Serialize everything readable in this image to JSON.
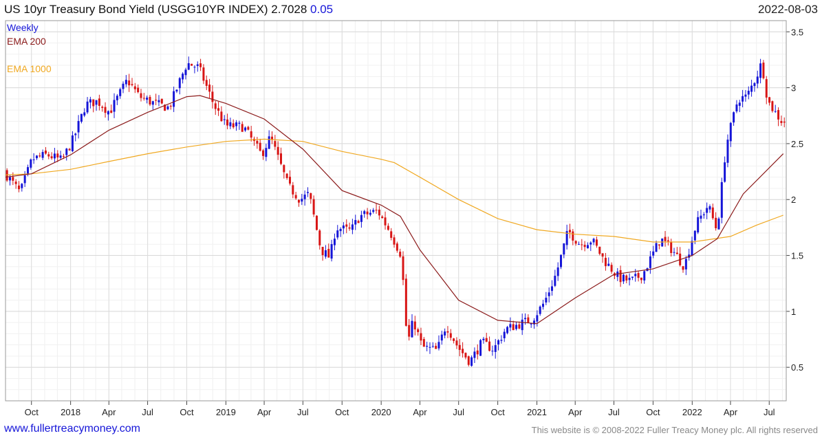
{
  "header": {
    "title_main": "US 10yr Treasury Bond Yield (USGG10YR INDEX) 2.7028",
    "title_change": "0.05",
    "date": "2022-08-03"
  },
  "legend": {
    "frequency": "Weekly",
    "ema200": "EMA 200",
    "ema1000": "EMA 1000"
  },
  "footer": {
    "site": "www.fullertreacymoney.com",
    "copyright": "This website is © 2008-2022 Fuller Treacy Money plc. All rights reserved"
  },
  "colors": {
    "up": "#1515d8",
    "down": "#d81515",
    "ema200": "#8b1a1a",
    "ema1000": "#f0a820",
    "grid": "#e6e6e6"
  },
  "chart_data": {
    "type": "candlestick",
    "x_range": [
      "2017-08-01",
      "2022-08-10"
    ],
    "ylim": [
      0.2,
      3.6
    ],
    "y_ticks": [
      0.5,
      1,
      1.5,
      2,
      2.5,
      3,
      3.5
    ],
    "y_tick_labels": [
      "0.5",
      "1",
      "1.5",
      "2",
      "2.5",
      "3",
      "3.5"
    ],
    "x_ticks": [
      {
        "date": "2017-10-01",
        "label": "Oct"
      },
      {
        "date": "2018-01-01",
        "label": "2018"
      },
      {
        "date": "2018-04-01",
        "label": "Apr"
      },
      {
        "date": "2018-07-01",
        "label": "Jul"
      },
      {
        "date": "2018-10-01",
        "label": "Oct"
      },
      {
        "date": "2019-01-01",
        "label": "2019"
      },
      {
        "date": "2019-04-01",
        "label": "Apr"
      },
      {
        "date": "2019-07-01",
        "label": "Jul"
      },
      {
        "date": "2019-10-01",
        "label": "Oct"
      },
      {
        "date": "2020-01-01",
        "label": "2020"
      },
      {
        "date": "2020-04-01",
        "label": "Apr"
      },
      {
        "date": "2020-07-01",
        "label": "Jul"
      },
      {
        "date": "2020-10-01",
        "label": "Oct"
      },
      {
        "date": "2021-01-01",
        "label": "2021"
      },
      {
        "date": "2021-04-01",
        "label": "Apr"
      },
      {
        "date": "2021-07-01",
        "label": "Jul"
      },
      {
        "date": "2021-10-01",
        "label": "Oct"
      },
      {
        "date": "2022-01-01",
        "label": "2022"
      },
      {
        "date": "2022-04-01",
        "label": "Apr"
      },
      {
        "date": "2022-07-01",
        "label": "Jul"
      }
    ],
    "price_path": [
      [
        "2017-08-01",
        2.25
      ],
      [
        "2017-09-08",
        2.06
      ],
      [
        "2017-10-06",
        2.36
      ],
      [
        "2017-11-10",
        2.4
      ],
      [
        "2017-12-15",
        2.35
      ],
      [
        "2018-01-12",
        2.55
      ],
      [
        "2018-02-09",
        2.85
      ],
      [
        "2018-03-09",
        2.88
      ],
      [
        "2018-04-06",
        2.78
      ],
      [
        "2018-05-18",
        3.07
      ],
      [
        "2018-06-15",
        2.92
      ],
      [
        "2018-07-20",
        2.86
      ],
      [
        "2018-08-24",
        2.82
      ],
      [
        "2018-10-05",
        3.22
      ],
      [
        "2018-11-02",
        3.18
      ],
      [
        "2018-12-07",
        2.85
      ],
      [
        "2019-01-04",
        2.66
      ],
      [
        "2019-02-15",
        2.65
      ],
      [
        "2019-03-29",
        2.4
      ],
      [
        "2019-04-19",
        2.56
      ],
      [
        "2019-05-31",
        2.12
      ],
      [
        "2019-06-28",
        2.0
      ],
      [
        "2019-07-19",
        2.05
      ],
      [
        "2019-08-16",
        1.55
      ],
      [
        "2019-09-06",
        1.48
      ],
      [
        "2019-09-20",
        1.75
      ],
      [
        "2019-10-25",
        1.72
      ],
      [
        "2019-11-15",
        1.85
      ],
      [
        "2019-12-27",
        1.9
      ],
      [
        "2020-01-24",
        1.72
      ],
      [
        "2020-02-21",
        1.5
      ],
      [
        "2020-03-06",
        0.7
      ],
      [
        "2020-03-20",
        0.92
      ],
      [
        "2020-04-10",
        0.68
      ],
      [
        "2020-05-15",
        0.65
      ],
      [
        "2020-06-05",
        0.88
      ],
      [
        "2020-07-03",
        0.68
      ],
      [
        "2020-07-31",
        0.55
      ],
      [
        "2020-08-28",
        0.72
      ],
      [
        "2020-09-25",
        0.66
      ],
      [
        "2020-10-23",
        0.84
      ],
      [
        "2020-11-20",
        0.88
      ],
      [
        "2020-12-25",
        0.93
      ],
      [
        "2021-01-22",
        1.08
      ],
      [
        "2021-02-19",
        1.34
      ],
      [
        "2021-03-19",
        1.72
      ],
      [
        "2021-04-16",
        1.6
      ],
      [
        "2021-05-14",
        1.64
      ],
      [
        "2021-06-11",
        1.46
      ],
      [
        "2021-07-16",
        1.3
      ],
      [
        "2021-08-13",
        1.27
      ],
      [
        "2021-09-10",
        1.33
      ],
      [
        "2021-10-22",
        1.65
      ],
      [
        "2021-11-19",
        1.55
      ],
      [
        "2021-12-17",
        1.4
      ],
      [
        "2022-01-14",
        1.78
      ],
      [
        "2022-02-11",
        1.95
      ],
      [
        "2022-03-04",
        1.72
      ],
      [
        "2022-03-25",
        2.48
      ],
      [
        "2022-04-22",
        2.9
      ],
      [
        "2022-05-13",
        2.92
      ],
      [
        "2022-06-10",
        3.15
      ],
      [
        "2022-06-17",
        3.23
      ],
      [
        "2022-07-01",
        2.88
      ],
      [
        "2022-07-22",
        2.76
      ],
      [
        "2022-08-03",
        2.7
      ]
    ],
    "ema200_path": [
      [
        "2017-08-01",
        2.2
      ],
      [
        "2017-10-01",
        2.23
      ],
      [
        "2018-01-01",
        2.4
      ],
      [
        "2018-04-01",
        2.62
      ],
      [
        "2018-07-01",
        2.78
      ],
      [
        "2018-10-01",
        2.92
      ],
      [
        "2018-11-01",
        2.93
      ],
      [
        "2019-01-01",
        2.86
      ],
      [
        "2019-04-01",
        2.72
      ],
      [
        "2019-07-01",
        2.45
      ],
      [
        "2019-10-01",
        2.08
      ],
      [
        "2020-01-01",
        1.95
      ],
      [
        "2020-02-15",
        1.85
      ],
      [
        "2020-04-01",
        1.55
      ],
      [
        "2020-07-01",
        1.1
      ],
      [
        "2020-10-01",
        0.92
      ],
      [
        "2021-01-01",
        0.89
      ],
      [
        "2021-04-01",
        1.12
      ],
      [
        "2021-07-01",
        1.33
      ],
      [
        "2021-10-01",
        1.38
      ],
      [
        "2022-01-01",
        1.5
      ],
      [
        "2022-03-01",
        1.65
      ],
      [
        "2022-05-01",
        2.05
      ],
      [
        "2022-08-03",
        2.41
      ]
    ],
    "ema1000_path": [
      [
        "2017-08-01",
        2.22
      ],
      [
        "2017-10-01",
        2.23
      ],
      [
        "2018-01-01",
        2.27
      ],
      [
        "2018-04-01",
        2.34
      ],
      [
        "2018-07-01",
        2.41
      ],
      [
        "2018-10-01",
        2.47
      ],
      [
        "2019-01-01",
        2.52
      ],
      [
        "2019-04-01",
        2.54
      ],
      [
        "2019-07-01",
        2.52
      ],
      [
        "2019-10-01",
        2.43
      ],
      [
        "2020-01-01",
        2.36
      ],
      [
        "2020-02-01",
        2.33
      ],
      [
        "2020-04-01",
        2.2
      ],
      [
        "2020-07-01",
        2.0
      ],
      [
        "2020-10-01",
        1.83
      ],
      [
        "2021-01-01",
        1.73
      ],
      [
        "2021-04-01",
        1.69
      ],
      [
        "2021-07-01",
        1.67
      ],
      [
        "2021-10-01",
        1.62
      ],
      [
        "2022-01-01",
        1.62
      ],
      [
        "2022-04-01",
        1.67
      ],
      [
        "2022-06-01",
        1.77
      ],
      [
        "2022-08-03",
        1.86
      ]
    ]
  }
}
